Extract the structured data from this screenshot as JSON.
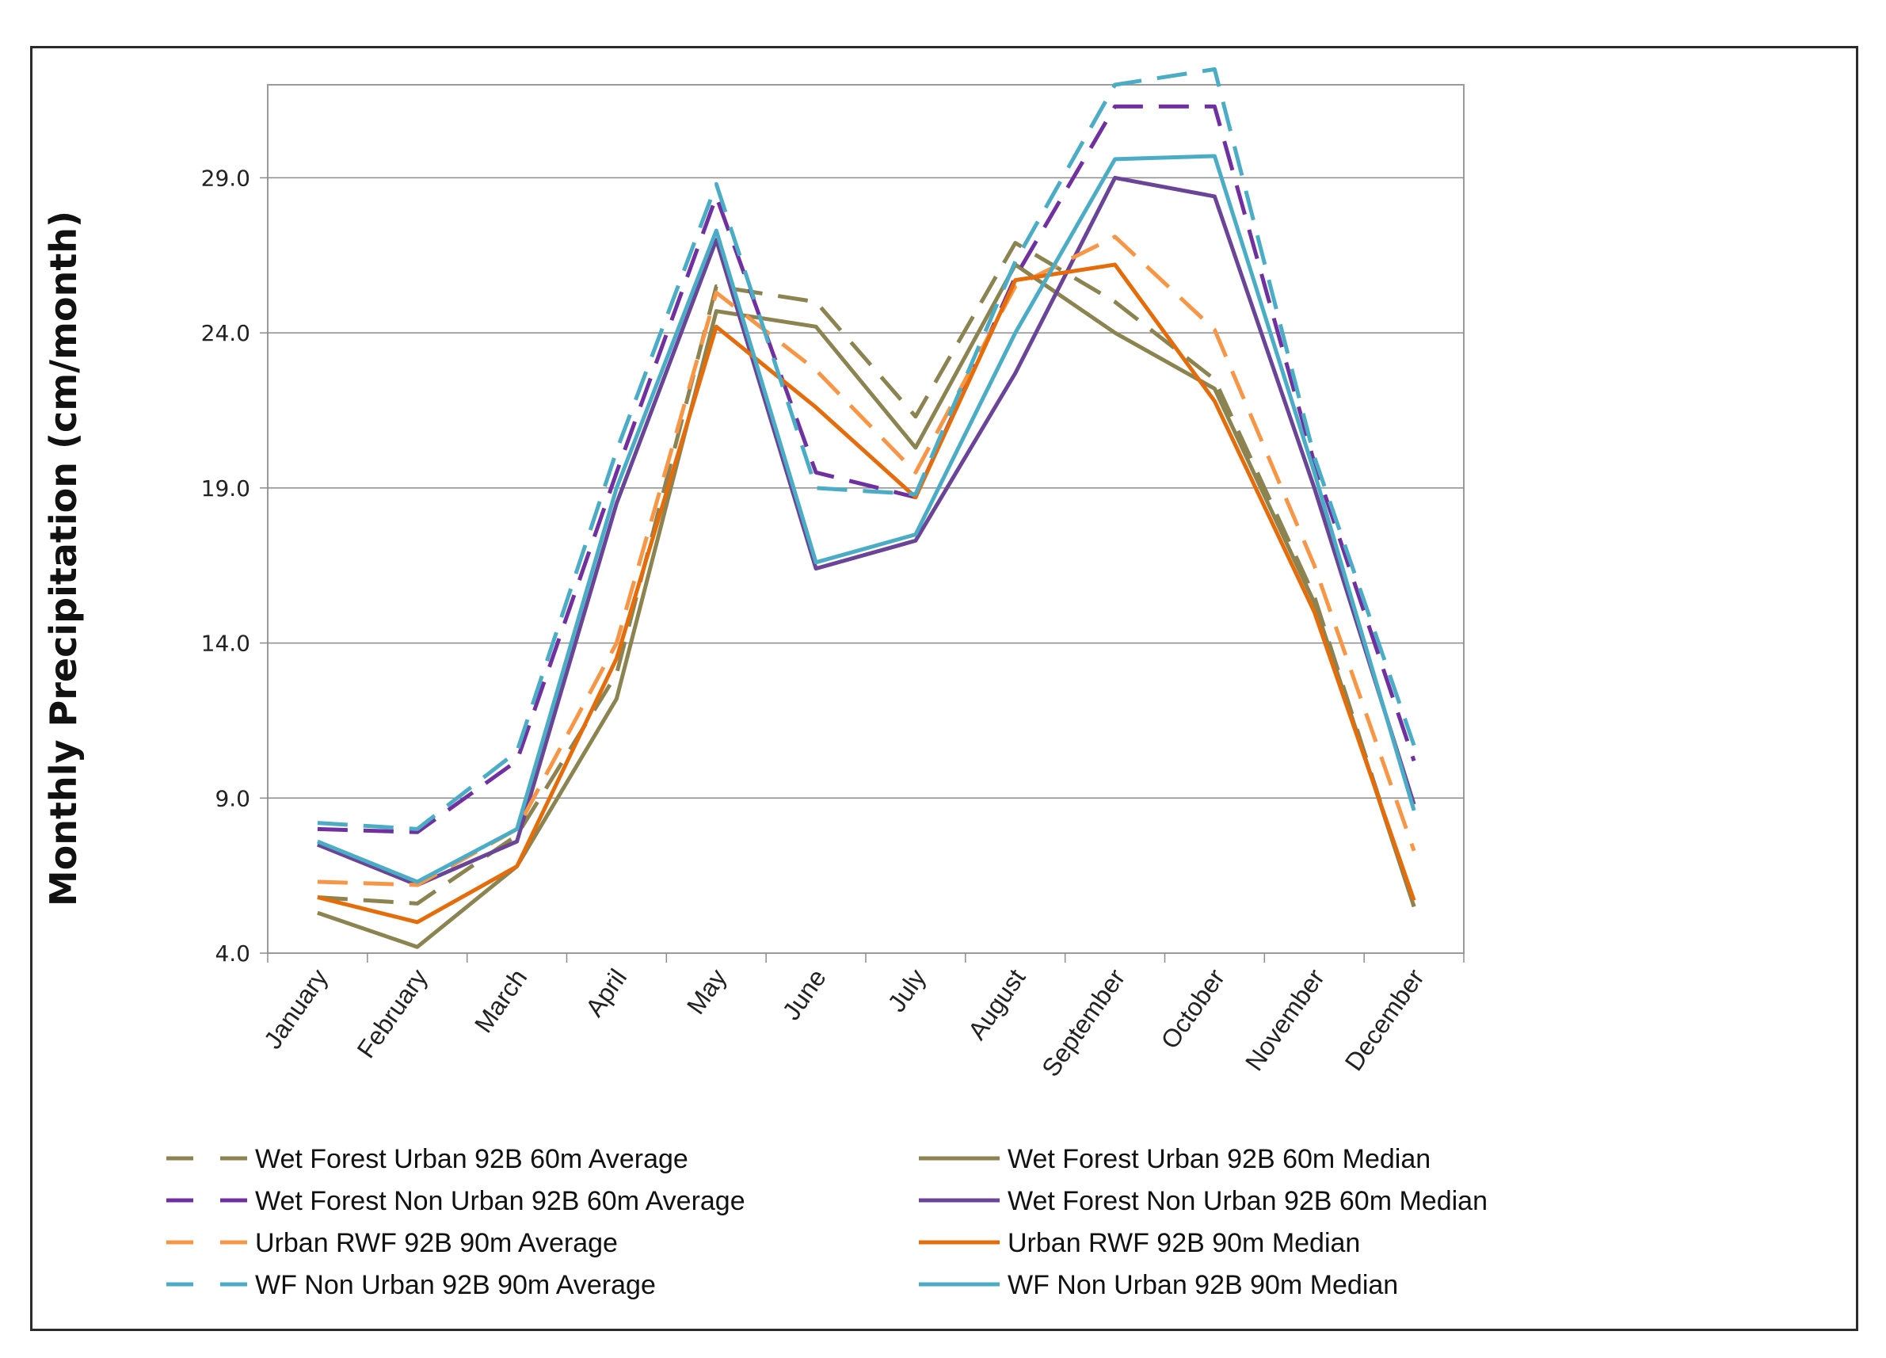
{
  "chart_data": {
    "type": "line",
    "title": "",
    "xlabel": "",
    "ylabel": "Monthly Precipitation (cm/month)",
    "ylim": [
      4.0,
      32.0
    ],
    "yticks": [
      "4.0",
      "9.0",
      "14.0",
      "19.0",
      "24.0",
      "29.0"
    ],
    "yticks_values": [
      4,
      9,
      14,
      19,
      24,
      29
    ],
    "grid": "horizontal",
    "legend_position": "bottom",
    "categories": [
      "January",
      "February",
      "March",
      "April",
      "May",
      "June",
      "July",
      "August",
      "September",
      "October",
      "November",
      "December"
    ],
    "series": [
      {
        "name": "Wet Forest Urban 92B 60m Average",
        "color": "#8b8350",
        "style": "dashed",
        "values": [
          5.8,
          5.6,
          7.8,
          13.0,
          25.5,
          25.0,
          21.3,
          26.9,
          25.0,
          22.5,
          15.5,
          5.5
        ]
      },
      {
        "name": "Wet Forest Urban 92B 60m Median",
        "color": "#8b8350",
        "style": "solid",
        "values": [
          5.3,
          4.2,
          6.8,
          12.2,
          24.7,
          24.2,
          20.3,
          26.2,
          24.0,
          22.2,
          15.3,
          5.5
        ]
      },
      {
        "name": "Wet Forest Non Urban 92B 60m Average",
        "color": "#7030a0",
        "style": "dashed",
        "values": [
          8.0,
          7.9,
          10.2,
          19.5,
          28.4,
          19.5,
          18.7,
          25.8,
          31.3,
          31.3,
          19.8,
          10.2
        ]
      },
      {
        "name": "Wet Forest Non Urban 92B 60m Median",
        "color": "#6a4496",
        "style": "solid",
        "values": [
          7.5,
          6.2,
          7.6,
          18.5,
          27.0,
          16.4,
          17.3,
          22.7,
          29.0,
          28.4,
          19.0,
          8.8
        ]
      },
      {
        "name": "Urban RWF 92B 90m Average",
        "color": "#f79646",
        "style": "dashed",
        "values": [
          6.3,
          6.2,
          8.0,
          14.0,
          25.3,
          22.8,
          19.5,
          25.5,
          27.1,
          24.1,
          16.5,
          7.3
        ]
      },
      {
        "name": "Urban RWF 92B 90m Median",
        "color": "#e46c0a",
        "style": "solid",
        "values": [
          5.8,
          5.0,
          6.8,
          13.5,
          24.2,
          21.6,
          18.7,
          25.7,
          26.2,
          21.8,
          15.0,
          5.7
        ]
      },
      {
        "name": "WF Non Urban 92B 90m Average",
        "color": "#4bacc6",
        "style": "dashed",
        "values": [
          8.2,
          8.0,
          10.5,
          20.2,
          28.8,
          19.0,
          18.8,
          26.3,
          32.0,
          32.5,
          20.0,
          10.7
        ]
      },
      {
        "name": "WF Non Urban 92B 90m Median",
        "color": "#4bacc6",
        "style": "solid",
        "values": [
          7.6,
          6.3,
          8.0,
          19.0,
          27.3,
          16.6,
          17.5,
          24.0,
          29.6,
          29.7,
          19.5,
          8.6
        ]
      }
    ]
  }
}
